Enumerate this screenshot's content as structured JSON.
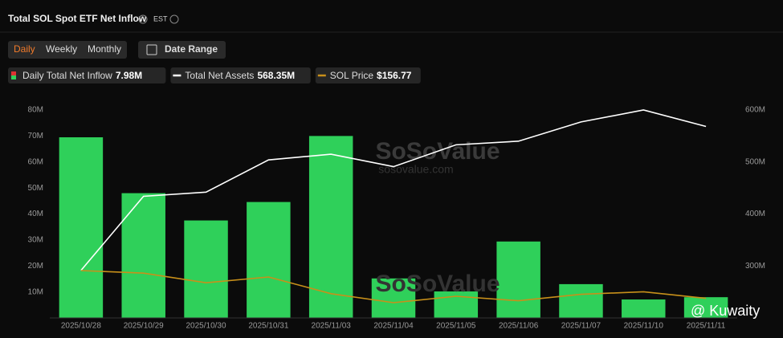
{
  "header": {
    "title": "Total SOL Spot ETF Net Inflow",
    "timezone": "EST",
    "tabs": [
      "Daily",
      "Weekly",
      "Monthly"
    ],
    "date_range": "Date Range"
  },
  "watermark": {
    "brand": "SoSoValue",
    "site": "sosovalue.com",
    "credit": "@ Kuwaity"
  },
  "chart_data": {
    "type": "bar",
    "categories": [
      "2025/10/28",
      "2025/10/29",
      "2025/10/30",
      "2025/10/31",
      "2025/11/03",
      "2025/11/04",
      "2025/11/05",
      "2025/11/06",
      "2025/11/07",
      "2025/11/10",
      "2025/11/11"
    ],
    "series": [
      {
        "name": "Daily Total Net Inflow",
        "latest_label": "7.98M",
        "type": "bar",
        "color": "#2fd05a",
        "values": [
          69.5,
          48,
          37.5,
          44.6,
          70,
          15.2,
          10.2,
          29.4,
          13,
          7.1,
          7.98
        ]
      },
      {
        "name": "Total Net Assets",
        "latest_label": "568.35M",
        "type": "line",
        "axis": "y2",
        "color": "#ffffff",
        "values": [
          291.5,
          434,
          442,
          504,
          515,
          491,
          533,
          540,
          577,
          600,
          568.35
        ]
      },
      {
        "name": "SOL Price",
        "latest_label": "$156.77",
        "type": "line",
        "axis": "none",
        "color": "#c8901a",
        "values": [
          200,
          196,
          181,
          190,
          164,
          150,
          160,
          153,
          163,
          167,
          156.77
        ]
      }
    ],
    "ylim": [
      0,
      80
    ],
    "yticks": [
      {
        "value": 10,
        "label": "10M"
      },
      {
        "value": 20,
        "label": "20M"
      },
      {
        "value": 30,
        "label": "30M"
      },
      {
        "value": 40,
        "label": "40M"
      },
      {
        "value": 50,
        "label": "50M"
      },
      {
        "value": 60,
        "label": "60M"
      },
      {
        "value": 70,
        "label": "70M"
      },
      {
        "value": 80,
        "label": "80M"
      }
    ],
    "y2lim": [
      200,
      600
    ],
    "y2ticks": [
      {
        "value": 300,
        "label": "300M"
      },
      {
        "value": 400,
        "label": "400M"
      },
      {
        "value": 500,
        "label": "500M"
      },
      {
        "value": 600,
        "label": "600M"
      }
    ]
  }
}
